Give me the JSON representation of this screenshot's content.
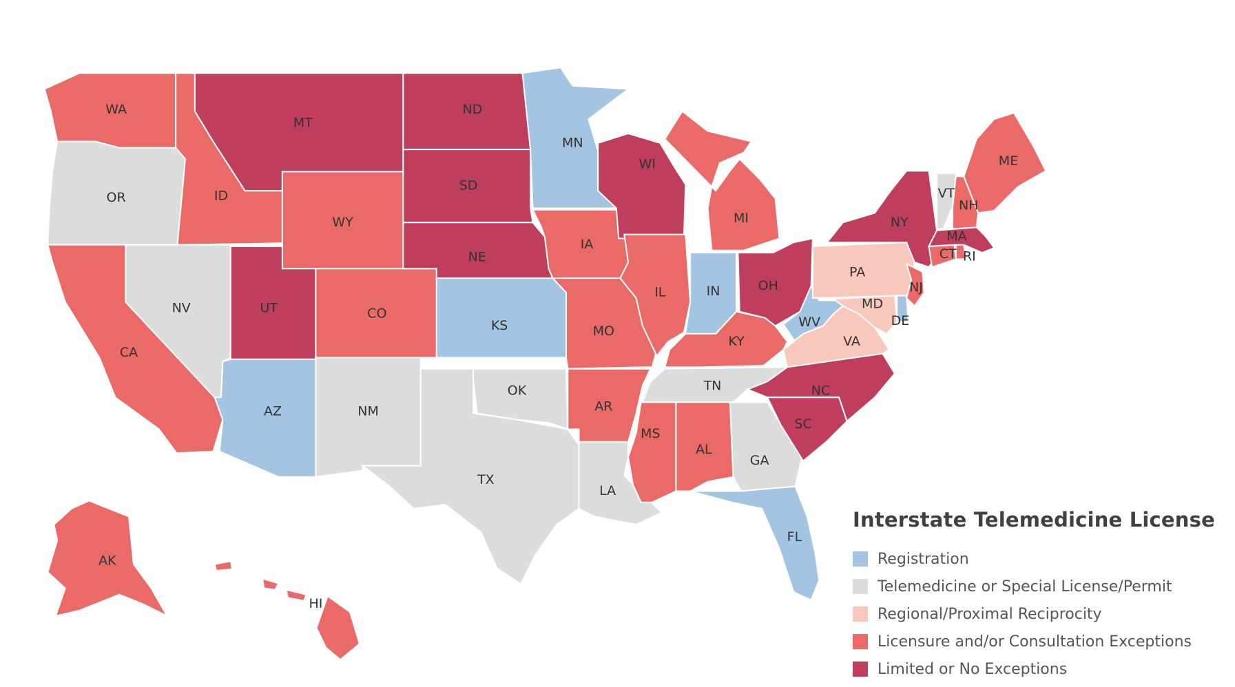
{
  "colors": {
    "registration": "#a3c5e2",
    "special": "#dcdcdc",
    "reciprocity": "#f8c8bd",
    "exceptions": "#ea6a67",
    "limited": "#bf3e5e"
  },
  "legend": {
    "title": "Interstate Telemedicine License",
    "items": [
      {
        "key": "registration",
        "label": "Registration"
      },
      {
        "key": "special",
        "label": "Telemedicine or Special License/Permit"
      },
      {
        "key": "reciprocity",
        "label": "Regional/Proximal Reciprocity"
      },
      {
        "key": "exceptions",
        "label": "Licensure and/or Consultation Exceptions"
      },
      {
        "key": "limited",
        "label": "Limited or No Exceptions"
      }
    ]
  },
  "states": [
    {
      "code": "WA",
      "category": "exceptions"
    },
    {
      "code": "OR",
      "category": "special"
    },
    {
      "code": "CA",
      "category": "exceptions"
    },
    {
      "code": "ID",
      "category": "exceptions"
    },
    {
      "code": "NV",
      "category": "special"
    },
    {
      "code": "MT",
      "category": "limited"
    },
    {
      "code": "WY",
      "category": "exceptions"
    },
    {
      "code": "UT",
      "category": "limited"
    },
    {
      "code": "AZ",
      "category": "registration"
    },
    {
      "code": "CO",
      "category": "exceptions"
    },
    {
      "code": "NM",
      "category": "special"
    },
    {
      "code": "ND",
      "category": "limited"
    },
    {
      "code": "SD",
      "category": "limited"
    },
    {
      "code": "NE",
      "category": "limited"
    },
    {
      "code": "KS",
      "category": "registration"
    },
    {
      "code": "OK",
      "category": "special"
    },
    {
      "code": "TX",
      "category": "special"
    },
    {
      "code": "MN",
      "category": "registration"
    },
    {
      "code": "IA",
      "category": "exceptions"
    },
    {
      "code": "MO",
      "category": "exceptions"
    },
    {
      "code": "AR",
      "category": "exceptions"
    },
    {
      "code": "LA",
      "category": "special"
    },
    {
      "code": "WI",
      "category": "limited"
    },
    {
      "code": "IL",
      "category": "exceptions"
    },
    {
      "code": "MS",
      "category": "exceptions"
    },
    {
      "code": "MI",
      "category": "exceptions"
    },
    {
      "code": "IN",
      "category": "registration"
    },
    {
      "code": "KY",
      "category": "exceptions"
    },
    {
      "code": "TN",
      "category": "special"
    },
    {
      "code": "AL",
      "category": "exceptions"
    },
    {
      "code": "GA",
      "category": "special"
    },
    {
      "code": "FL",
      "category": "registration"
    },
    {
      "code": "OH",
      "category": "limited"
    },
    {
      "code": "WV",
      "category": "registration"
    },
    {
      "code": "VA",
      "category": "reciprocity"
    },
    {
      "code": "NC",
      "category": "limited"
    },
    {
      "code": "SC",
      "category": "limited"
    },
    {
      "code": "PA",
      "category": "reciprocity"
    },
    {
      "code": "MD",
      "category": "reciprocity"
    },
    {
      "code": "DE",
      "category": "registration"
    },
    {
      "code": "NJ",
      "category": "exceptions"
    },
    {
      "code": "NY",
      "category": "limited"
    },
    {
      "code": "CT",
      "category": "exceptions"
    },
    {
      "code": "RI",
      "category": "exceptions"
    },
    {
      "code": "MA",
      "category": "limited"
    },
    {
      "code": "VT",
      "category": "special"
    },
    {
      "code": "NH",
      "category": "exceptions"
    },
    {
      "code": "ME",
      "category": "exceptions"
    },
    {
      "code": "AK",
      "category": "exceptions"
    },
    {
      "code": "HI",
      "category": "exceptions"
    }
  ]
}
